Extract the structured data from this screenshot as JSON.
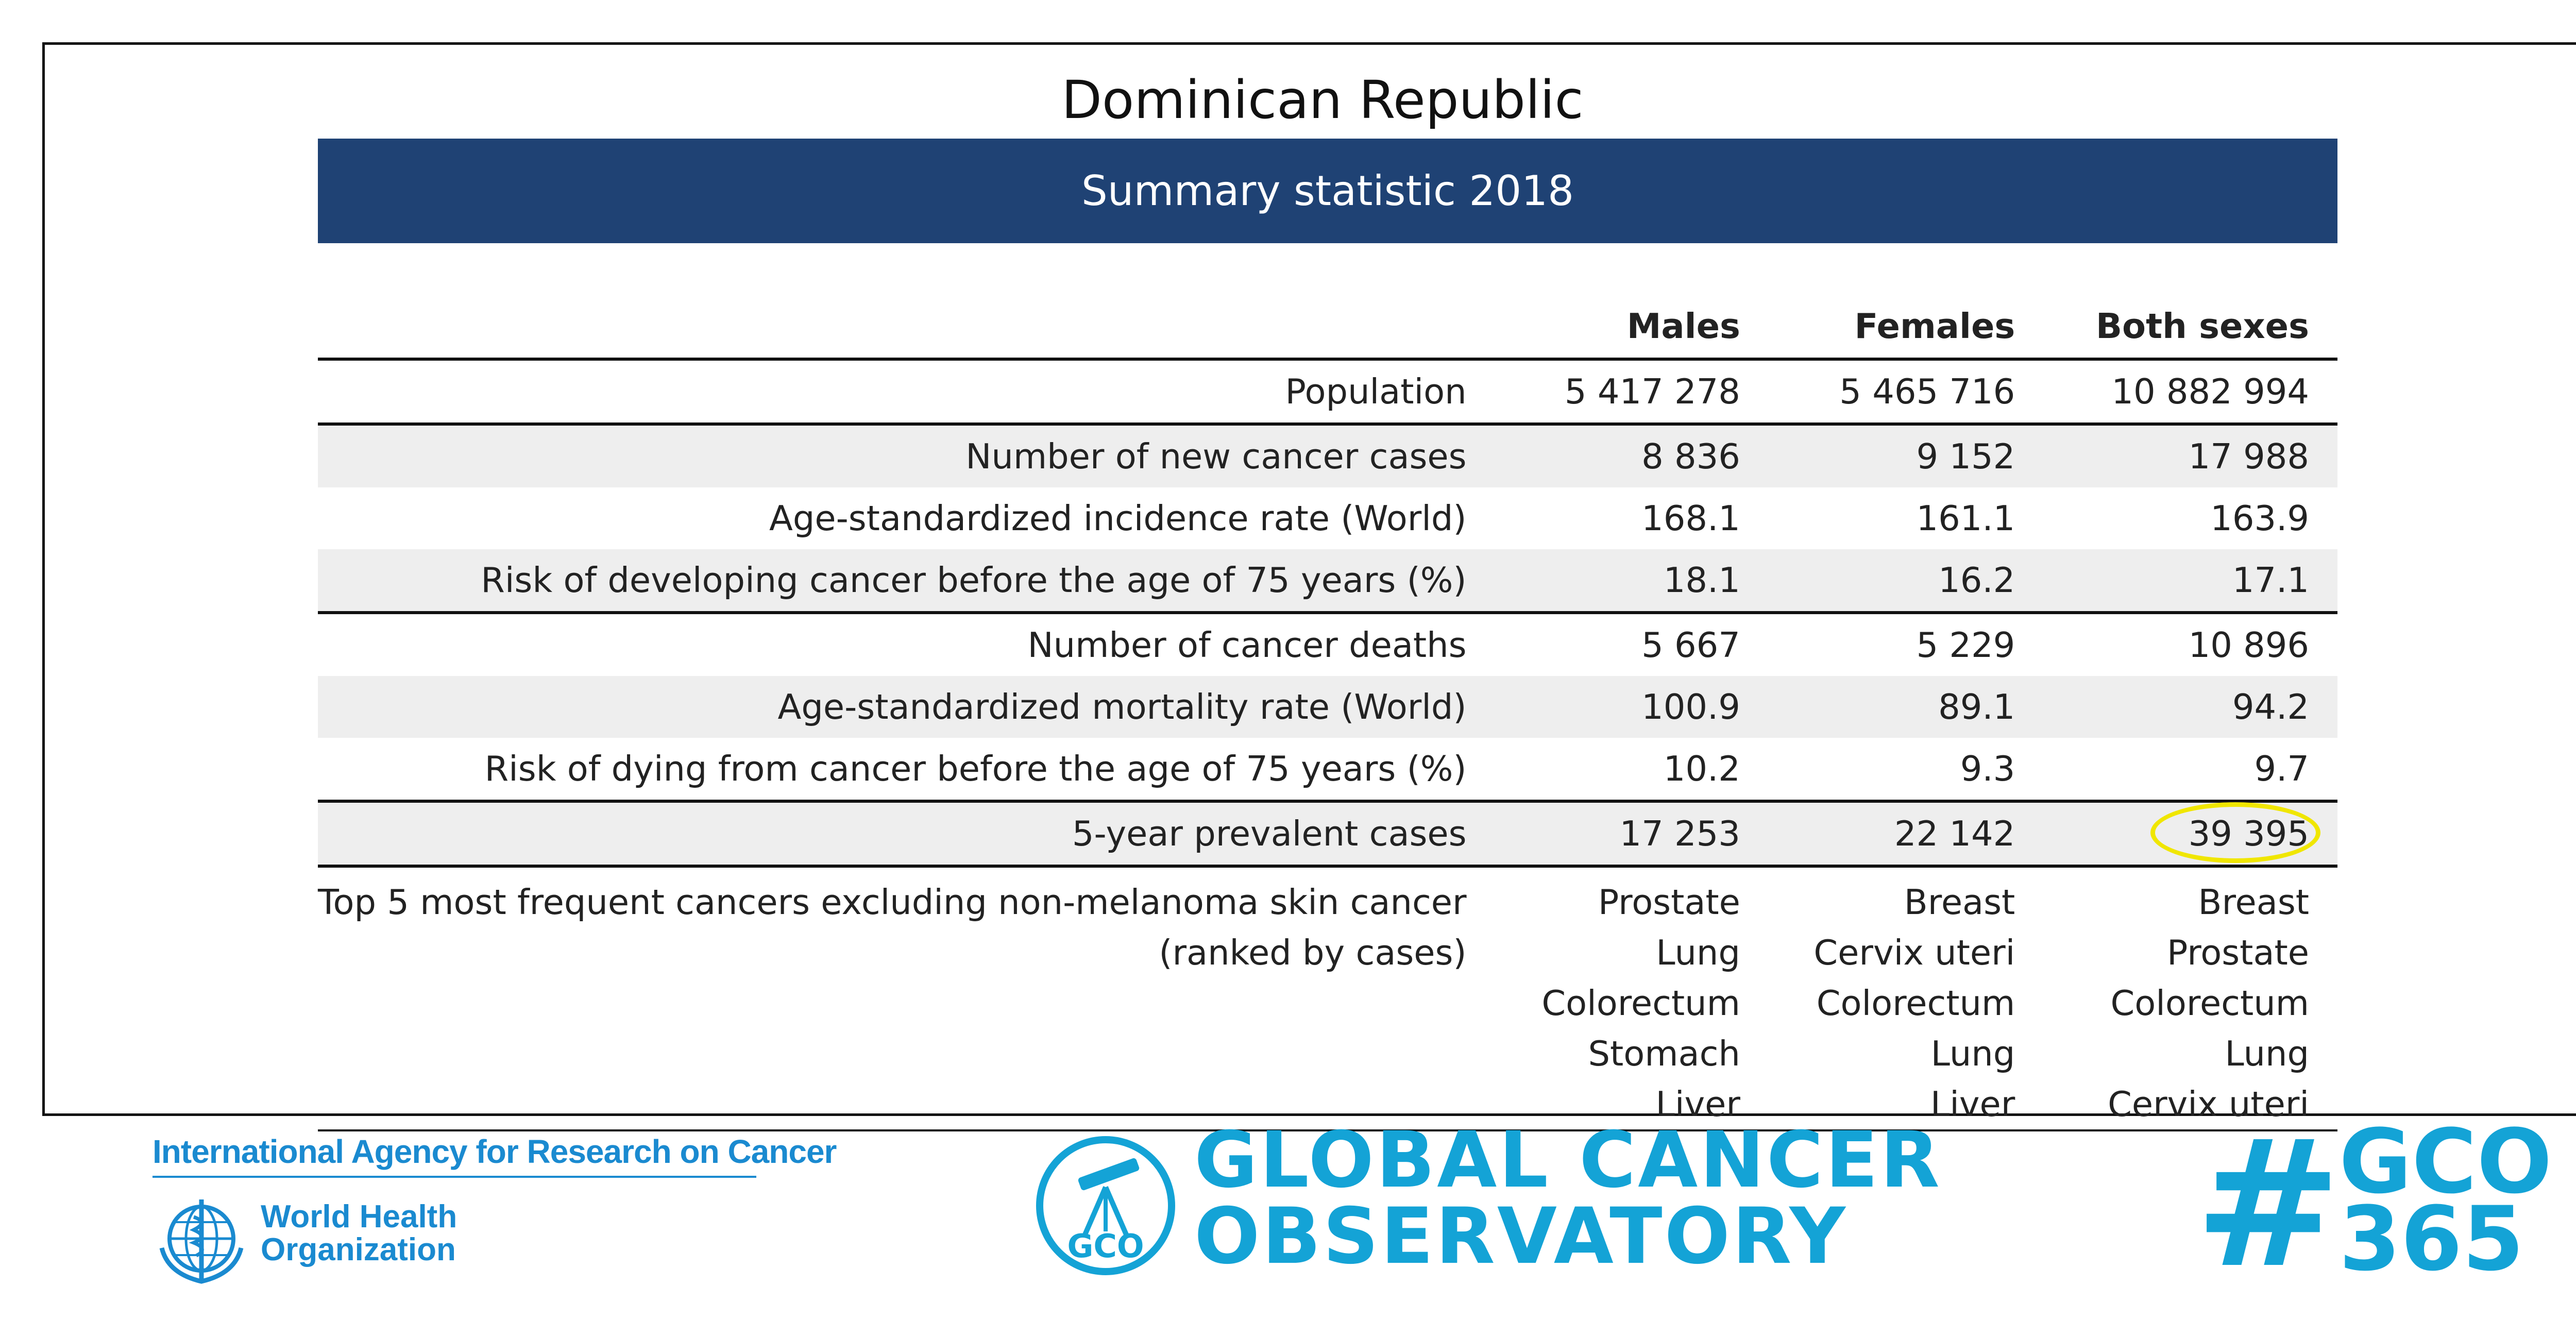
{
  "country": "Dominican Republic",
  "banner": "Summary statistic 2018",
  "columns": [
    "Males",
    "Females",
    "Both sexes"
  ],
  "rows": [
    {
      "label": "Population",
      "males": "5 417 278",
      "females": "5 465 716",
      "both": "10 882 994"
    },
    {
      "label": "Number of new cancer cases",
      "males": "8 836",
      "females": "9 152",
      "both": "17 988"
    },
    {
      "label": "Age-standardized incidence rate (World)",
      "males": "168.1",
      "females": "161.1",
      "both": "163.9"
    },
    {
      "label": "Risk of developing cancer before the age of 75 years (%)",
      "males": "18.1",
      "females": "16.2",
      "both": "17.1"
    },
    {
      "label": "Number of cancer deaths",
      "males": "5 667",
      "females": "5 229",
      "both": "10 896"
    },
    {
      "label": "Age-standardized mortality rate (World)",
      "males": "100.9",
      "females": "89.1",
      "both": "94.2"
    },
    {
      "label": "Risk of dying from cancer before the age of 75 years (%)",
      "males": "10.2",
      "females": "9.3",
      "both": "9.7"
    },
    {
      "label": "5-year prevalent cases",
      "males": "17 253",
      "females": "22 142",
      "both": "39 395"
    }
  ],
  "top5": {
    "label_line1": "Top 5 most frequent cancers excluding non-melanoma skin cancer",
    "label_line2": "(ranked by cases)",
    "males": [
      "Prostate",
      "Lung",
      "Colorectum",
      "Stomach",
      "Liver"
    ],
    "females": [
      "Breast",
      "Cervix uteri",
      "Colorectum",
      "Lung",
      "Liver"
    ],
    "both": [
      "Breast",
      "Prostate",
      "Colorectum",
      "Lung",
      "Cervix uteri"
    ]
  },
  "footer": {
    "iarc": "International Agency for Research on Cancer",
    "who_line1": "World Health",
    "who_line2": "Organization",
    "gco_badge": "GCO",
    "gco_line1": "GLOBAL CANCER",
    "gco_line2": "OBSERVATORY",
    "hash": "#",
    "hashtag_line1": "GCO",
    "hashtag_line2": "365"
  },
  "colors": {
    "banner": "#1f4274",
    "gco_blue": "#14a3d6",
    "iarc_blue": "#1a8ad0",
    "highlight_ring": "#f0e600",
    "row_shade": "#eeeeee"
  }
}
